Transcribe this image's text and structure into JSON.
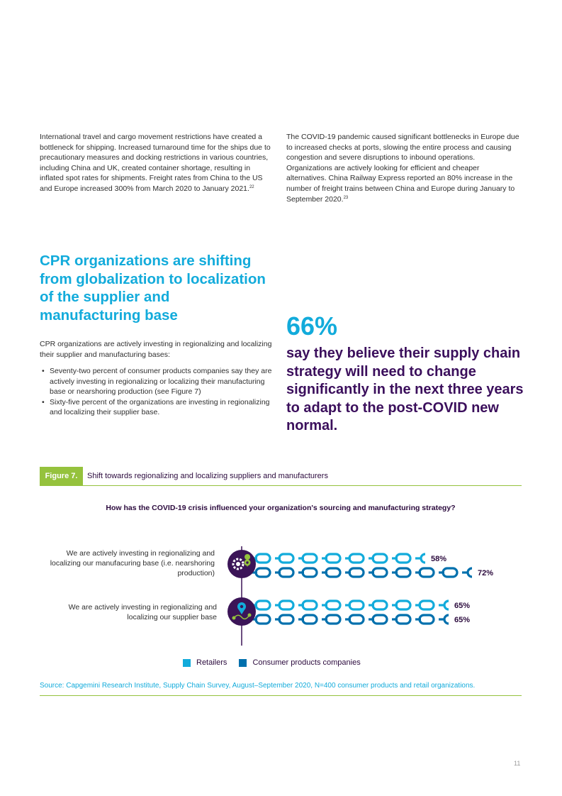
{
  "col_left_text": "International travel and cargo movement restrictions have created a bottleneck for shipping. Increased turnaround time for the ships due to precautionary measures and docking restrictions in various countries, including China and UK, created container shortage, resulting in inflated spot rates for shipments. Freight rates from China to the US and Europe increased 300% from March 2020 to January 2021.",
  "col_left_ref": "22",
  "col_right_text": "The COVID-19 pandemic caused significant bottlenecks in Europe due to increased checks at ports, slowing the entire process and causing congestion and severe disruptions to inbound operations. Organizations are actively looking for efficient and cheaper alternatives. China Railway Express reported an 80% increase in the number of freight trains between China and Europe during January to September 2020.",
  "col_right_ref": "23",
  "heading": "CPR organizations are shifting from globalization to localization of the supplier and manufacturing base",
  "intro": "CPR organizations are actively investing in regionalizing and localizing their supplier and manufacturing bases:",
  "bullets": [
    "Seventy-two percent of consumer products companies say they are actively investing in regionalizing or localizing their manufacturing base or nearshoring production (see Figure 7)",
    "Sixty-five percent of the organizations are investing in regionalizing and localizing their supplier base."
  ],
  "stat": {
    "number": "66%",
    "text": "say they believe their supply chain strategy will need to change significantly in the next three years to adapt to the post-COVID new normal."
  },
  "figure": {
    "label": "Figure 7.",
    "title": "Shift towards regionalizing and localizing suppliers and manufacturers",
    "question": "How has the COVID-19 crisis influenced your organization's sourcing and manufacturing strategy?",
    "source": "Source: Capgemini Research Institute, Supply Chain Survey, August–September 2020, N=400 consumer products and retail organizations."
  },
  "chart_data": {
    "type": "bar",
    "categories": [
      "We are actively investing in regionalizing and localizing our manufacuring base (i.e. nearshoring production)",
      "We are actively investing in regionalizing and localizing our supplier base"
    ],
    "series": [
      {
        "name": "Retailers",
        "values": [
          58,
          65
        ],
        "labels": [
          "58%",
          "65%"
        ],
        "color": "#12abdb"
      },
      {
        "name": "Consumer products companies",
        "values": [
          72,
          65
        ],
        "labels": [
          "72%",
          "65%"
        ],
        "color": "#0070ad"
      }
    ],
    "icons": [
      "gear-location-icon",
      "route-pin-icon"
    ],
    "legend_position": "bottom"
  },
  "colors": {
    "accent": "#12abdb",
    "dark_purple": "#2b0a3d",
    "green": "#95c23d",
    "retailers": "#12abdb",
    "consumer_products": "#0070ad"
  },
  "page_number": "11"
}
